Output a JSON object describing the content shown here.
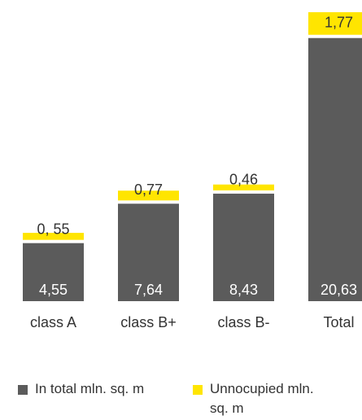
{
  "chart_data": {
    "type": "stacked-bar",
    "categories": [
      "class A",
      "class B+",
      "class B-",
      "Total"
    ],
    "series": [
      {
        "name": "In total mln. sq. m",
        "color": "#5b5b5b",
        "values": [
          4.55,
          7.64,
          8.43,
          20.63
        ],
        "value_labels": [
          "4,55",
          "7,64",
          "8,43",
          "20,63"
        ]
      },
      {
        "name": "Unnocupied mln. sq. m",
        "color": "#ffe500",
        "values": [
          0.55,
          0.77,
          0.46,
          1.77
        ],
        "value_labels": [
          "0, 55",
          "0,77",
          "0,46",
          "1,77"
        ]
      }
    ]
  }
}
